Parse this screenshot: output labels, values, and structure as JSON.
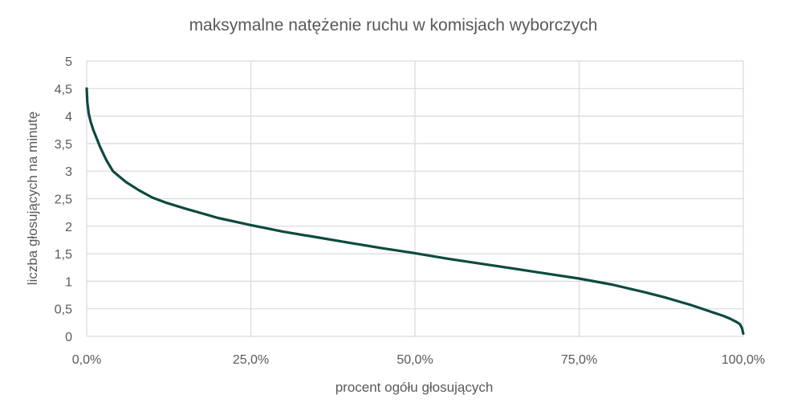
{
  "chart_data": {
    "type": "line",
    "title": "maksymalne natężenie ruchu w komisjach wyborczych",
    "xlabel": "procent ogółu głosujących",
    "ylabel": "liczba głosujących na minutę",
    "xlim": [
      0,
      100
    ],
    "ylim": [
      0,
      5
    ],
    "x_ticks": [
      0,
      25,
      50,
      75,
      100
    ],
    "x_tick_labels": [
      "0,0%",
      "25,0%",
      "50,0%",
      "75,0%",
      "100,0%"
    ],
    "y_ticks": [
      0,
      0.5,
      1,
      1.5,
      2,
      2.5,
      3,
      3.5,
      4,
      4.5,
      5
    ],
    "y_tick_labels": [
      "0",
      "0,5",
      "1",
      "1,5",
      "2",
      "2,5",
      "3",
      "3,5",
      "4",
      "4,5",
      "5"
    ],
    "grid": true,
    "legend": "none",
    "series": [
      {
        "color": "#0d4a3f",
        "x": [
          0,
          0.1,
          0.3,
          0.6,
          1,
          1.5,
          2,
          3,
          4,
          5,
          6,
          8,
          10,
          12,
          15,
          20,
          25,
          30,
          35,
          40,
          45,
          50,
          55,
          60,
          65,
          70,
          75,
          80,
          85,
          88,
          90,
          92,
          94,
          96,
          97,
          98,
          99,
          99.5,
          99.8,
          100
        ],
        "y": [
          4.5,
          4.25,
          4.05,
          3.9,
          3.75,
          3.6,
          3.45,
          3.2,
          3.0,
          2.9,
          2.8,
          2.65,
          2.52,
          2.43,
          2.32,
          2.15,
          2.02,
          1.9,
          1.8,
          1.7,
          1.6,
          1.51,
          1.41,
          1.32,
          1.23,
          1.14,
          1.05,
          0.94,
          0.8,
          0.71,
          0.64,
          0.57,
          0.49,
          0.41,
          0.37,
          0.32,
          0.26,
          0.22,
          0.15,
          0.05
        ]
      }
    ]
  }
}
